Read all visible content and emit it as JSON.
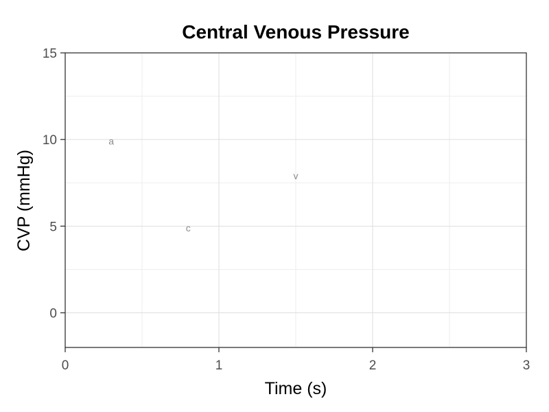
{
  "chart_data": {
    "type": "scatter",
    "title": "Central Venous Pressure",
    "xlabel": "Time (s)",
    "ylabel": "CVP (mmHg)",
    "xlim": [
      0,
      3
    ],
    "ylim": [
      -2,
      15
    ],
    "x_ticks": [
      0,
      1,
      2,
      3
    ],
    "y_ticks": [
      0,
      5,
      10,
      15
    ],
    "grid": true,
    "points": [
      {
        "x": 0.3,
        "y": 9.9,
        "label": "a"
      },
      {
        "x": 0.8,
        "y": 4.9,
        "label": "c"
      },
      {
        "x": 1.5,
        "y": 7.9,
        "label": "v"
      }
    ],
    "point_label_color": "#8c8c8c"
  }
}
